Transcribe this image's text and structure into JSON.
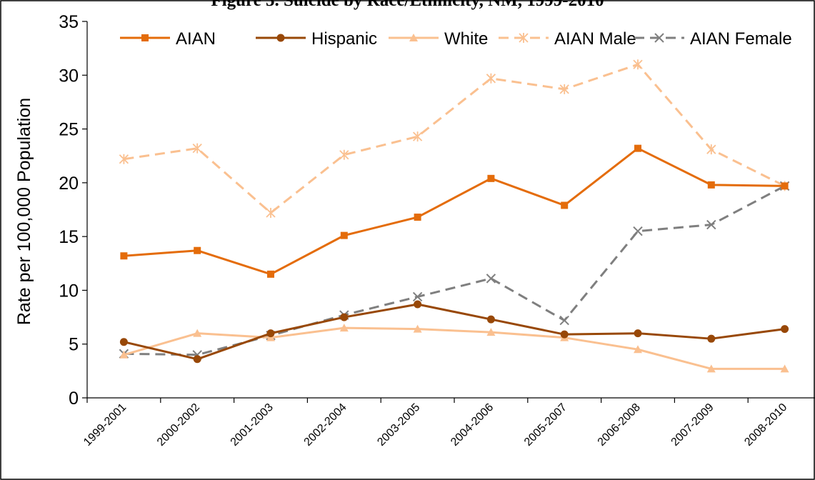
{
  "chart_data": {
    "type": "line",
    "title": "Figure 5. Suicide by Race/Ethnicity, NM, 1999-2010",
    "xlabel": "",
    "ylabel": "Rate per 100,000 Population",
    "ylim": [
      0,
      35
    ],
    "yticks": [
      0,
      5,
      10,
      15,
      20,
      25,
      30,
      35
    ],
    "grid": false,
    "legend": "top",
    "categories": [
      "1999-2001",
      "2000-2002",
      "2001-2003",
      "2002-2004",
      "2003-2005",
      "2004-2006",
      "2005-2007",
      "2006-2008",
      "2007-2009",
      "2008-2010"
    ],
    "series": [
      {
        "name": "AIAN",
        "color": "#E46C0A",
        "dash": "solid",
        "marker": "square",
        "values": [
          13.2,
          13.7,
          11.5,
          15.1,
          16.8,
          20.4,
          17.9,
          23.2,
          19.8,
          19.7
        ]
      },
      {
        "name": "Hispanic",
        "color": "#984807",
        "dash": "solid",
        "marker": "circle",
        "values": [
          5.2,
          3.6,
          6.0,
          7.5,
          8.7,
          7.3,
          5.9,
          6.0,
          5.5,
          6.4
        ]
      },
      {
        "name": "White",
        "color": "#FAC090",
        "dash": "solid",
        "marker": "triangle",
        "values": [
          4.0,
          6.0,
          5.6,
          6.5,
          6.4,
          6.1,
          5.6,
          4.5,
          2.7,
          2.7
        ]
      },
      {
        "name": "AIAN Male",
        "color": "#FAC090",
        "dash": "dashed",
        "marker": "asterisk",
        "values": [
          22.2,
          23.2,
          17.2,
          22.6,
          24.3,
          29.7,
          28.7,
          31.0,
          23.1,
          19.7
        ]
      },
      {
        "name": "AIAN Female",
        "color": "#7F7F7F",
        "dash": "dashed",
        "marker": "x",
        "values": [
          4.1,
          4.0,
          5.8,
          7.7,
          9.4,
          11.1,
          7.2,
          15.5,
          16.1,
          19.7
        ]
      }
    ]
  }
}
